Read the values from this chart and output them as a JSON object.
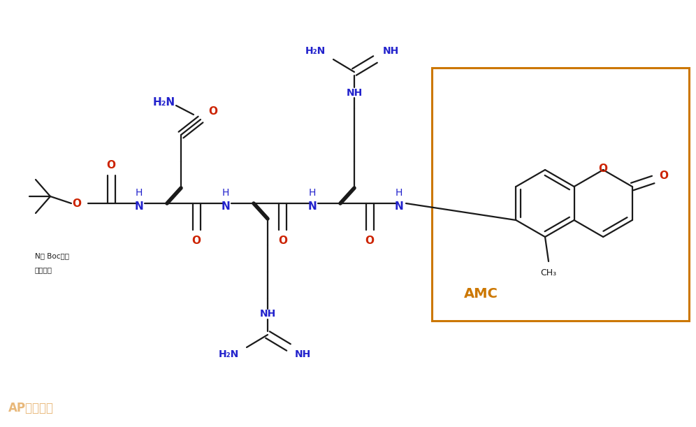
{
  "bg_color": "#ffffff",
  "black": "#1a1a1a",
  "blue": "#2222cc",
  "red": "#cc2200",
  "orange": "#cc7700",
  "orange_box": "#cc7700",
  "watermark_color": "#e8b87a",
  "figsize": [
    9.96,
    6.11
  ],
  "dpi": 100,
  "watermark": "AP专肽生物",
  "label_AMC": "AMC",
  "label_boc_line1": "N端 Boc保护",
  "label_boc_line2": "对酸敏感"
}
